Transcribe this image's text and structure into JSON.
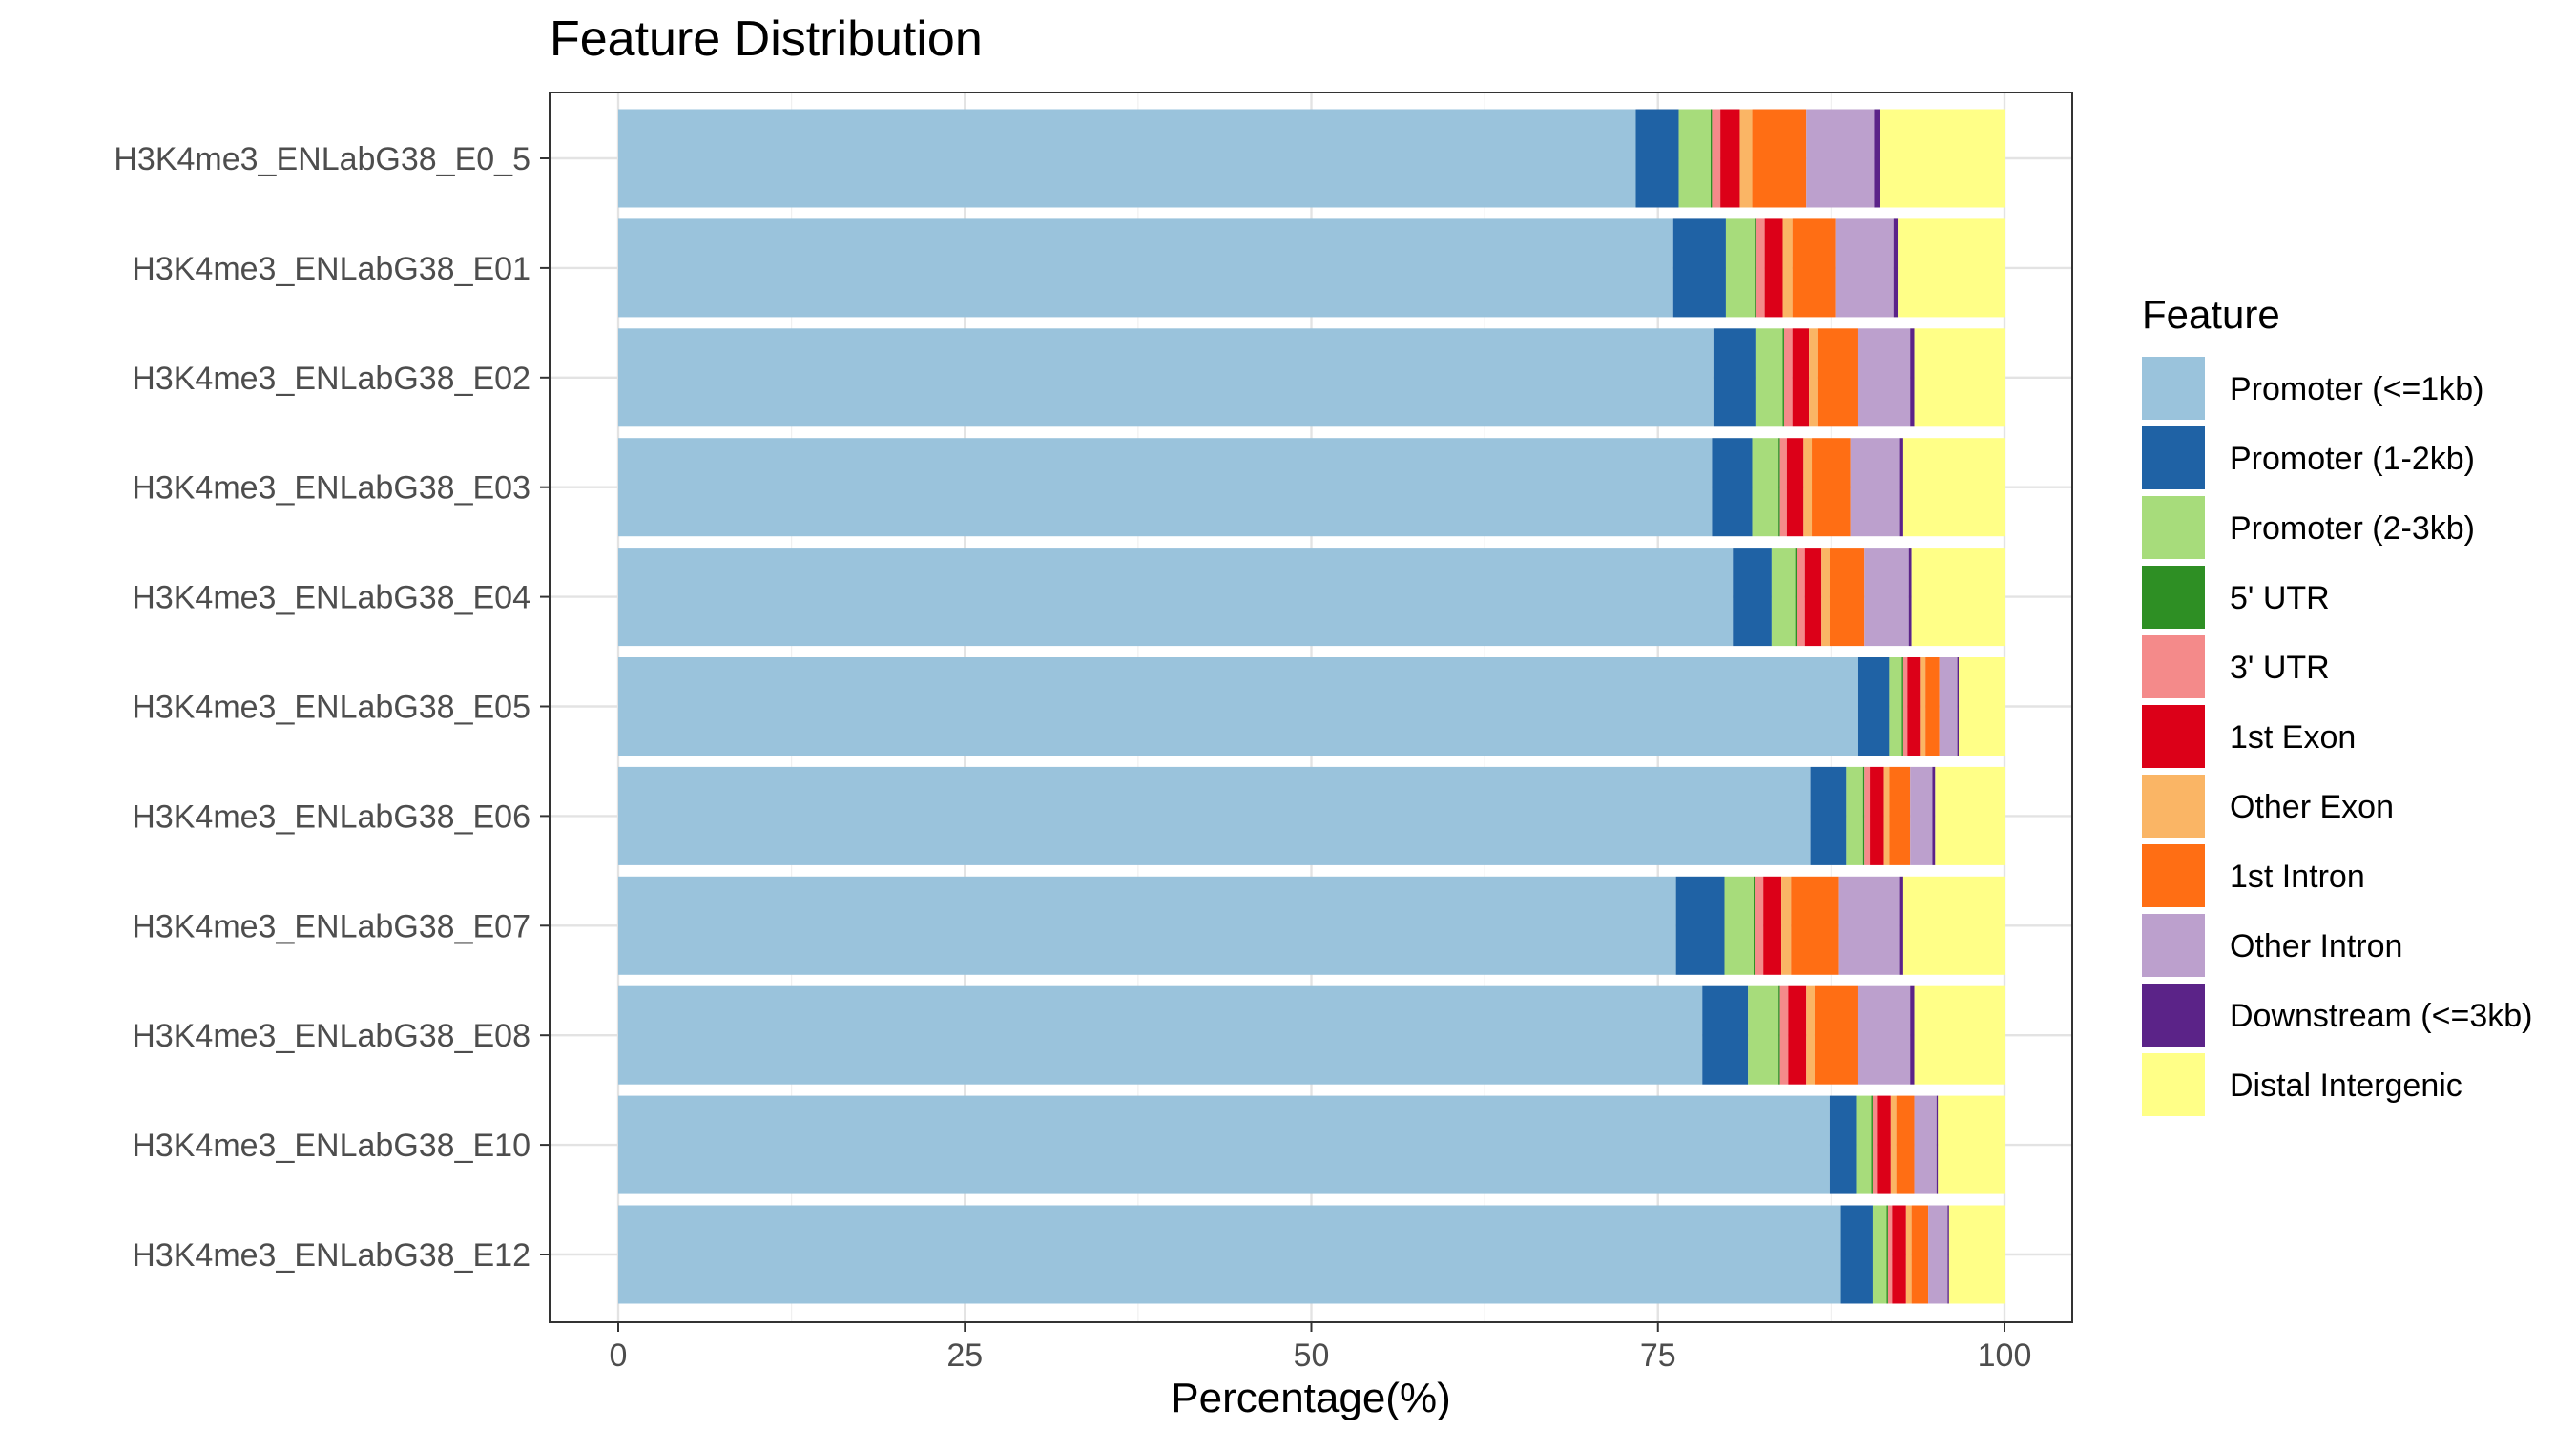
{
  "chart_data": {
    "type": "bar",
    "orientation": "horizontal",
    "stacked": true,
    "title": "Feature Distribution",
    "xlabel": "Percentage(%)",
    "ylabel": "",
    "xlim": [
      0,
      100
    ],
    "xticks": [
      0,
      25,
      50,
      75,
      100
    ],
    "grid": true,
    "legend_position": "right",
    "legend_title": "Feature",
    "categories": [
      "H3K4me3_ENLabG38_E0_5",
      "H3K4me3_ENLabG38_E01",
      "H3K4me3_ENLabG38_E02",
      "H3K4me3_ENLabG38_E03",
      "H3K4me3_ENLabG38_E04",
      "H3K4me3_ENLabG38_E05",
      "H3K4me3_ENLabG38_E06",
      "H3K4me3_ENLabG38_E07",
      "H3K4me3_ENLabG38_E08",
      "H3K4me3_ENLabG38_E10",
      "H3K4me3_ENLabG38_E12"
    ],
    "series": [
      {
        "name": "Promoter (<=1kb)",
        "color": "#9ac3dc",
        "values": [
          73.4,
          76.1,
          79.0,
          78.9,
          80.4,
          89.4,
          86.0,
          76.3,
          78.2,
          87.4,
          88.2
        ]
      },
      {
        "name": "Promoter (1-2kb)",
        "color": "#1f62a5",
        "values": [
          3.1,
          3.8,
          3.1,
          2.9,
          2.8,
          2.3,
          2.6,
          3.5,
          3.3,
          1.9,
          2.3
        ]
      },
      {
        "name": "Promoter (2-3kb)",
        "color": "#a7dc7b",
        "values": [
          2.3,
          2.1,
          1.9,
          1.9,
          1.7,
          0.9,
          1.2,
          2.1,
          2.2,
          1.1,
          1.0
        ]
      },
      {
        "name": "5' UTR",
        "color": "#2e8f24",
        "values": [
          0.1,
          0.1,
          0.1,
          0.1,
          0.1,
          0.1,
          0.1,
          0.1,
          0.1,
          0.1,
          0.1
        ]
      },
      {
        "name": "3' UTR",
        "color": "#f48a8a",
        "values": [
          0.6,
          0.6,
          0.6,
          0.5,
          0.6,
          0.3,
          0.4,
          0.6,
          0.6,
          0.3,
          0.3
        ]
      },
      {
        "name": "1st Exon",
        "color": "#dc0018",
        "values": [
          1.4,
          1.3,
          1.2,
          1.2,
          1.2,
          0.9,
          1.0,
          1.3,
          1.3,
          1.0,
          1.0
        ]
      },
      {
        "name": "Other Exon",
        "color": "#fab565",
        "values": [
          0.9,
          0.7,
          0.6,
          0.6,
          0.6,
          0.4,
          0.4,
          0.7,
          0.6,
          0.4,
          0.4
        ]
      },
      {
        "name": "1st Intron",
        "color": "#ff6e14",
        "values": [
          3.9,
          3.1,
          2.9,
          2.8,
          2.5,
          1.0,
          1.5,
          3.4,
          3.1,
          1.3,
          1.2
        ]
      },
      {
        "name": "Other Intron",
        "color": "#bca0cd",
        "values": [
          4.9,
          4.2,
          3.8,
          3.5,
          3.2,
          1.3,
          1.6,
          4.4,
          3.8,
          1.6,
          1.4
        ]
      },
      {
        "name": "Downstream (<=3kb)",
        "color": "#5b2388",
        "values": [
          0.4,
          0.3,
          0.3,
          0.3,
          0.2,
          0.1,
          0.2,
          0.3,
          0.3,
          0.1,
          0.1
        ]
      },
      {
        "name": "Distal Intergenic",
        "color": "#ffff87",
        "values": [
          9.0,
          7.7,
          6.5,
          7.3,
          6.7,
          3.3,
          5.0,
          7.3,
          6.5,
          4.8,
          4.0
        ]
      }
    ]
  }
}
